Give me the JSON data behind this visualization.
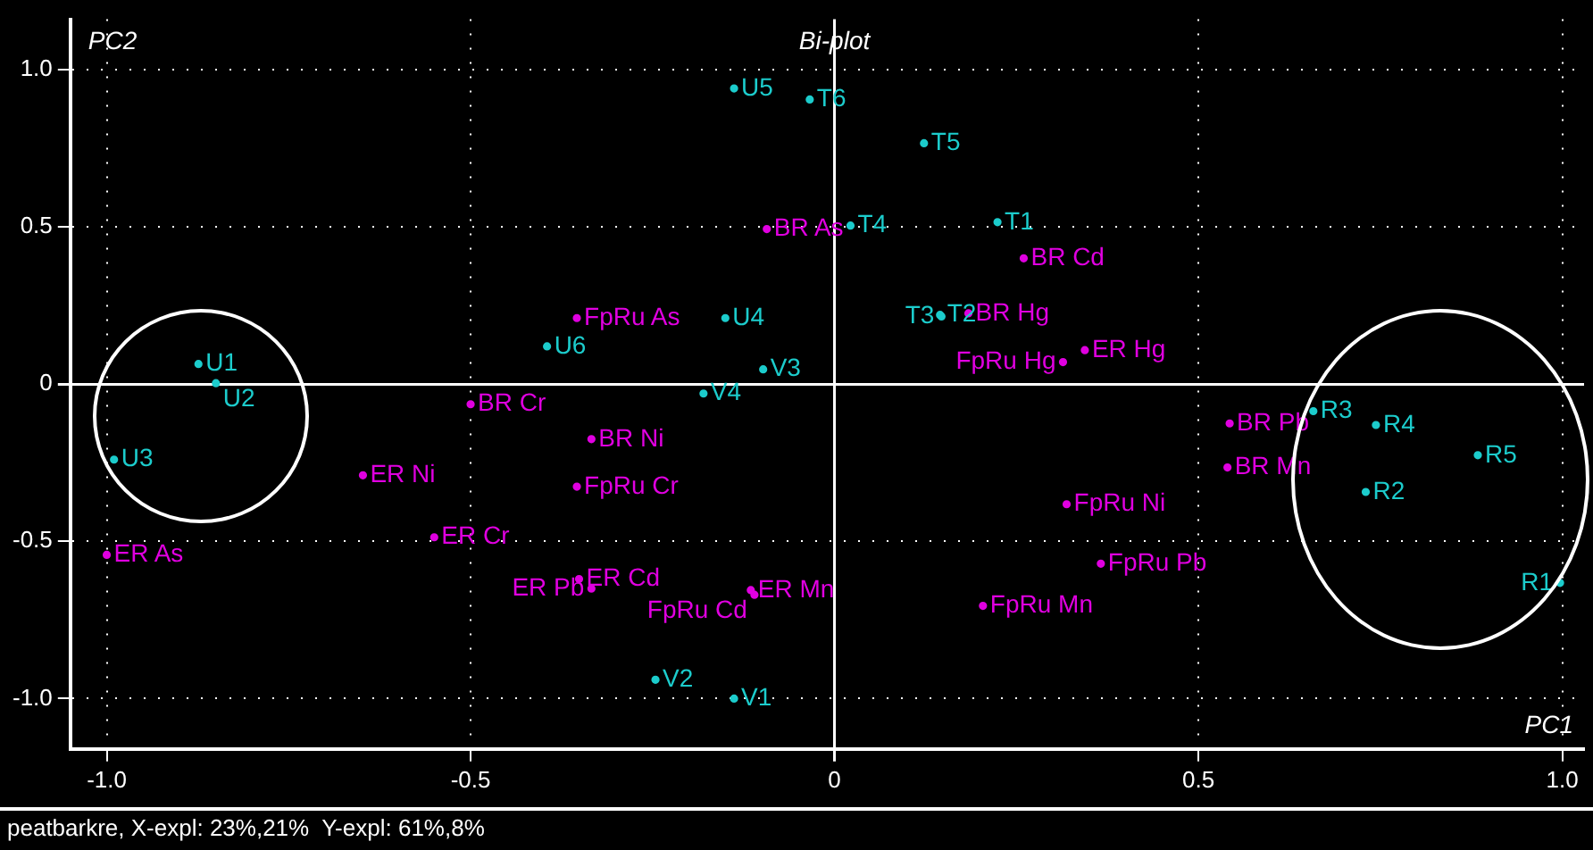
{
  "chart_data": {
    "type": "scatter",
    "title": "Bi-plot",
    "xlabel": "PC1",
    "ylabel": "PC2",
    "xlim": [
      -1.05,
      1.03
    ],
    "ylim": [
      -1.16,
      1.16
    ],
    "xticks": [
      {
        "value": -1,
        "label": "-1.0"
      },
      -0.5,
      0,
      0.5,
      {
        "value": 1,
        "label": "1.0"
      }
    ],
    "yticks": [
      {
        "value": -1,
        "label": "-1.0"
      },
      -0.5,
      0,
      0.5,
      {
        "value": 1,
        "label": "1.0"
      }
    ],
    "grid": true,
    "legend": false,
    "marker": "circle",
    "series": [
      {
        "color": "#1ccccc",
        "x": [
          -0.138,
          -0.034,
          0.123,
          0.022,
          0.224,
          0.145,
          0.147,
          -0.15,
          -0.395,
          -0.098,
          -0.18,
          -0.874,
          -0.85,
          -0.99,
          -0.246,
          -0.138,
          0.658,
          0.744,
          0.884,
          0.73,
          0.997
        ],
        "values": [
          0.94,
          0.905,
          0.766,
          0.504,
          0.515,
          0.22,
          0.215,
          0.21,
          0.12,
          0.047,
          -0.03,
          0.064,
          0.003,
          -0.24,
          -0.94,
          -1.0,
          -0.086,
          -0.13,
          -0.226,
          -0.343,
          -0.632
        ]
      },
      {
        "color": "#e000e0",
        "x": [
          -0.093,
          0.26,
          0.184,
          0.344,
          0.314,
          -0.354,
          -0.5,
          -0.334,
          -0.648,
          -0.354,
          -0.55,
          -1.0,
          -0.351,
          -0.334,
          -0.115,
          -0.11,
          0.319,
          0.366,
          0.204,
          0.543,
          0.54
        ],
        "values": [
          0.493,
          0.4,
          0.225,
          0.108,
          0.07,
          0.21,
          -0.064,
          -0.175,
          -0.29,
          -0.326,
          -0.487,
          -0.543,
          -0.62,
          -0.65,
          -0.655,
          -0.67,
          -0.382,
          -0.571,
          -0.705,
          -0.125,
          -0.265
        ]
      }
    ],
    "annotations": [
      {
        "text": "U5",
        "x": -0.138,
        "y": 0.94
      },
      {
        "text": "T6",
        "x": -0.034,
        "y": 0.905
      },
      {
        "text": "T5",
        "x": 0.123,
        "y": 0.766
      },
      {
        "text": "T4",
        "x": 0.022,
        "y": 0.504
      },
      {
        "text": "T1",
        "x": 0.224,
        "y": 0.515
      },
      {
        "text": "T2",
        "x": 0.145,
        "y": 0.22
      },
      {
        "text": "T3",
        "x": 0.147,
        "y": 0.215
      },
      {
        "text": "U4",
        "x": -0.15,
        "y": 0.21
      },
      {
        "text": "U6",
        "x": -0.395,
        "y": 0.12
      },
      {
        "text": "V3",
        "x": -0.098,
        "y": 0.047
      },
      {
        "text": "V4",
        "x": -0.18,
        "y": -0.03
      },
      {
        "text": "U1",
        "x": -0.874,
        "y": 0.064
      },
      {
        "text": "U2",
        "x": -0.85,
        "y": 0.003
      },
      {
        "text": "U3",
        "x": -0.99,
        "y": -0.24
      },
      {
        "text": "V2",
        "x": -0.246,
        "y": -0.94
      },
      {
        "text": "V1",
        "x": -0.138,
        "y": -1.0
      },
      {
        "text": "R3",
        "x": 0.658,
        "y": -0.086
      },
      {
        "text": "R4",
        "x": 0.744,
        "y": -0.13
      },
      {
        "text": "R5",
        "x": 0.884,
        "y": -0.226
      },
      {
        "text": "R2",
        "x": 0.73,
        "y": -0.343
      },
      {
        "text": "R1",
        "x": 0.997,
        "y": -0.632
      },
      {
        "text": "BR As",
        "x": -0.093,
        "y": 0.493
      },
      {
        "text": "BR Cd",
        "x": 0.26,
        "y": 0.4
      },
      {
        "text": "BR Hg",
        "x": 0.184,
        "y": 0.225
      },
      {
        "text": "ER Hg",
        "x": 0.344,
        "y": 0.108
      },
      {
        "text": "FpRu Hg",
        "x": 0.314,
        "y": 0.07
      },
      {
        "text": "FpRu As",
        "x": -0.354,
        "y": 0.21
      },
      {
        "text": "BR Cr",
        "x": -0.5,
        "y": -0.064
      },
      {
        "text": "BR Ni",
        "x": -0.334,
        "y": -0.175
      },
      {
        "text": "ER Ni",
        "x": -0.648,
        "y": -0.29
      },
      {
        "text": "FpRu Cr",
        "x": -0.354,
        "y": -0.326
      },
      {
        "text": "ER Cr",
        "x": -0.55,
        "y": -0.487
      },
      {
        "text": "ER As",
        "x": -1.0,
        "y": -0.543
      },
      {
        "text": "ER Cd",
        "x": -0.351,
        "y": -0.62
      },
      {
        "text": "ER Pb",
        "x": -0.334,
        "y": -0.65
      },
      {
        "text": "ER Mn",
        "x": -0.115,
        "y": -0.655
      },
      {
        "text": "FpRu Cd",
        "x": -0.11,
        "y": -0.67
      },
      {
        "text": "FpRu Ni",
        "x": 0.319,
        "y": -0.382
      },
      {
        "text": "FpRu Pb",
        "x": 0.366,
        "y": -0.571
      },
      {
        "text": "FpRu Mn",
        "x": 0.204,
        "y": -0.705
      },
      {
        "text": "BR Pb",
        "x": 0.543,
        "y": -0.125
      },
      {
        "text": "BR Mn",
        "x": 0.54,
        "y": -0.265
      },
      "peatbarkre, X-expl: 23%,21%  Y-expl: 61%,8%"
    ]
  }
}
